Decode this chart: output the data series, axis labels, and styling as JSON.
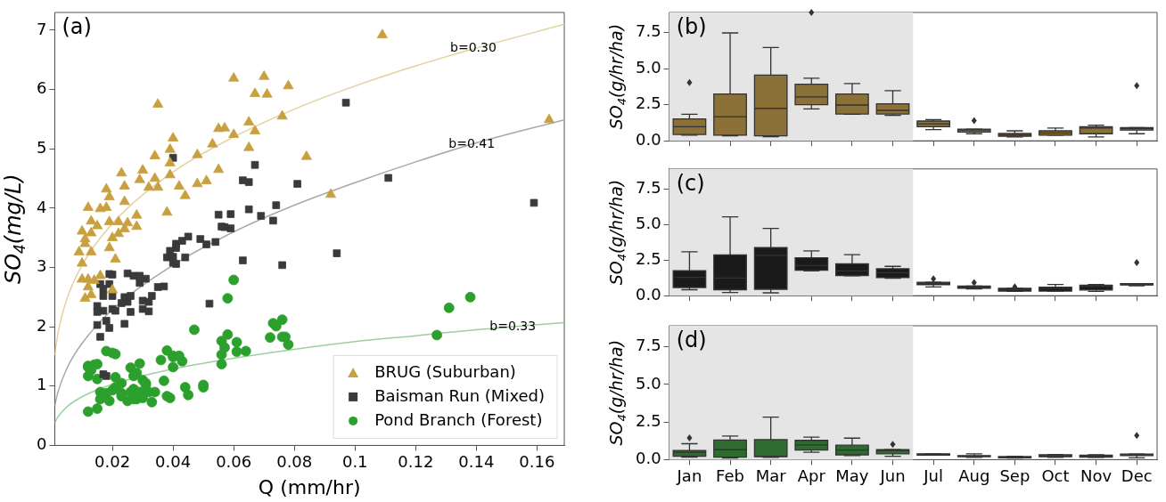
{
  "chart_data": [
    {
      "type": "scatter",
      "xlabel": "Q (mm/hr)",
      "ylabel": "SO$_{4}$(mg/L)",
      "xlim": [
        0.001,
        0.169
      ],
      "ylim": [
        0,
        7.3
      ],
      "xticks": [
        0.02,
        0.04,
        0.06,
        0.08,
        0.1,
        0.12,
        0.14,
        0.16
      ],
      "yticks": [
        0,
        1,
        2,
        3,
        4,
        5,
        6,
        7
      ],
      "legend": "bottom right",
      "annotations": [
        "(a)",
        {
          "text": "b=0.30",
          "x": 0.139,
          "y": 6.69
        },
        {
          "text": "b=0.41",
          "x": 0.1385,
          "y": 5.08
        },
        {
          "text": "b=0.33",
          "x": 0.152,
          "y": 2.0
        }
      ],
      "series": [
        {
          "name": "BRUG (Suburban)",
          "color": "#c9a040",
          "marker": "triangle",
          "x": [
            0.06,
            0.07,
            0.078,
            0.067,
            0.071,
            0.035,
            0.076,
            0.065,
            0.055,
            0.057,
            0.06,
            0.067,
            0.04,
            0.053,
            0.065,
            0.039,
            0.034,
            0.048,
            0.039,
            0.055,
            0.023,
            0.03,
            0.039,
            0.029,
            0.034,
            0.024,
            0.032,
            0.035,
            0.042,
            0.048,
            0.051,
            0.044,
            0.018,
            0.019,
            0.018,
            0.016,
            0.012,
            0.024,
            0.028,
            0.038,
            0.013,
            0.015,
            0.019,
            0.022,
            0.025,
            0.028,
            0.024,
            0.01,
            0.013,
            0.011,
            0.02,
            0.022,
            0.019,
            0.011,
            0.009,
            0.013,
            0.021,
            0.01,
            0.01,
            0.012,
            0.014,
            0.016,
            0.012,
            0.013,
            0.011,
            0.02,
            0.109,
            0.084,
            0.092,
            0.164
          ],
          "values": [
            6.19,
            6.22,
            6.06,
            5.93,
            5.92,
            5.75,
            5.55,
            5.45,
            5.34,
            5.35,
            5.24,
            5.3,
            5.18,
            5.08,
            5.02,
            4.99,
            4.88,
            4.9,
            4.76,
            4.65,
            4.59,
            4.64,
            4.56,
            4.48,
            4.5,
            4.37,
            4.35,
            4.35,
            4.37,
            4.41,
            4.46,
            4.21,
            4.32,
            4.19,
            4.01,
            3.99,
            4.01,
            4.11,
            3.88,
            3.93,
            3.78,
            3.7,
            3.77,
            3.77,
            3.75,
            3.69,
            3.65,
            3.61,
            3.58,
            3.48,
            3.5,
            3.57,
            3.33,
            3.4,
            3.26,
            3.26,
            3.14,
            3.07,
            2.8,
            2.8,
            2.78,
            2.86,
            2.67,
            2.54,
            2.48,
            2.62,
            6.92,
            4.87,
            4.23,
            5.49
          ]
        },
        {
          "name": "Baisman Run (Mixed)",
          "color": "#3a3a3a",
          "marker": "square",
          "x": [
            0.04,
            0.067,
            0.063,
            0.065,
            0.081,
            0.055,
            0.059,
            0.065,
            0.074,
            0.069,
            0.073,
            0.056,
            0.057,
            0.059,
            0.045,
            0.043,
            0.041,
            0.049,
            0.051,
            0.054,
            0.041,
            0.039,
            0.04,
            0.044,
            0.038,
            0.041,
            0.04,
            0.063,
            0.076,
            0.019,
            0.02,
            0.025,
            0.027,
            0.029,
            0.031,
            0.016,
            0.019,
            0.017,
            0.029,
            0.035,
            0.037,
            0.033,
            0.02,
            0.017,
            0.024,
            0.026,
            0.025,
            0.023,
            0.03,
            0.032,
            0.015,
            0.017,
            0.015,
            0.02,
            0.021,
            0.026,
            0.03,
            0.032,
            0.018,
            0.015,
            0.019,
            0.024,
            0.016,
            0.052,
            0.017,
            0.018,
            0.097,
            0.111,
            0.094,
            0.159
          ],
          "values": [
            4.85,
            4.73,
            4.47,
            4.44,
            4.41,
            3.89,
            3.9,
            3.98,
            4.05,
            3.87,
            3.79,
            3.69,
            3.68,
            3.66,
            3.52,
            3.45,
            3.4,
            3.48,
            3.39,
            3.43,
            3.33,
            3.28,
            3.18,
            3.17,
            3.17,
            3.06,
            3.08,
            3.12,
            3.04,
            2.89,
            2.88,
            2.9,
            2.86,
            2.86,
            2.81,
            2.72,
            2.72,
            2.64,
            2.74,
            2.67,
            2.68,
            2.52,
            2.52,
            2.52,
            2.5,
            2.52,
            2.42,
            2.4,
            2.44,
            2.42,
            2.35,
            2.27,
            2.25,
            2.3,
            2.27,
            2.25,
            2.3,
            2.26,
            2.1,
            2.03,
            1.98,
            2.05,
            1.83,
            2.39,
            1.2,
            1.17,
            5.78,
            4.51,
            3.24,
            4.09
          ]
        },
        {
          "name": "Pond Branch (Forest)",
          "color": "#2ca02c",
          "marker": "circle",
          "x": [
            0.06,
            0.058,
            0.047,
            0.076,
            0.073,
            0.074,
            0.072,
            0.076,
            0.077,
            0.078,
            0.058,
            0.056,
            0.061,
            0.057,
            0.056,
            0.061,
            0.064,
            0.056,
            0.038,
            0.04,
            0.04,
            0.042,
            0.043,
            0.04,
            0.036,
            0.018,
            0.02,
            0.021,
            0.012,
            0.012,
            0.014,
            0.015,
            0.013,
            0.026,
            0.029,
            0.027,
            0.028,
            0.03,
            0.031,
            0.031,
            0.012,
            0.015,
            0.021,
            0.023,
            0.037,
            0.044,
            0.05,
            0.05,
            0.045,
            0.016,
            0.018,
            0.02,
            0.021,
            0.023,
            0.026,
            0.027,
            0.029,
            0.032,
            0.034,
            0.016,
            0.019,
            0.023,
            0.025,
            0.027,
            0.028,
            0.03,
            0.033,
            0.038,
            0.039,
            0.012,
            0.015,
            0.138,
            0.131,
            0.127
          ],
          "values": [
            2.79,
            2.48,
            1.95,
            2.12,
            2.06,
            2.01,
            1.82,
            1.83,
            1.83,
            1.7,
            1.87,
            1.76,
            1.74,
            1.65,
            1.53,
            1.58,
            1.59,
            1.37,
            1.6,
            1.51,
            1.49,
            1.51,
            1.42,
            1.32,
            1.44,
            1.59,
            1.56,
            1.54,
            1.34,
            1.32,
            1.36,
            1.37,
            1.27,
            1.31,
            1.38,
            1.17,
            1.22,
            1.1,
            1.05,
            1.02,
            1.17,
            1.12,
            1.15,
            1.05,
            1.09,
            0.98,
            1.02,
            0.98,
            0.85,
            0.9,
            0.88,
            0.93,
            0.98,
            0.88,
            0.9,
            0.95,
            0.9,
            0.9,
            0.9,
            0.78,
            0.75,
            0.83,
            0.75,
            0.78,
            0.78,
            0.8,
            0.73,
            0.83,
            0.8,
            0.57,
            0.62,
            2.5,
            2.32,
            1.86
          ]
        },
        {
          "type": "line",
          "color": "#e2d2a0",
          "marker": "none",
          "x": [
            0.001,
            0.002,
            0.005,
            0.01,
            0.02,
            0.04,
            0.06,
            0.08,
            0.1,
            0.12,
            0.14,
            0.169
          ],
          "values": [
            1.52,
            1.88,
            2.47,
            3.04,
            3.74,
            4.61,
            5.2,
            5.67,
            6.06,
            6.4,
            6.7,
            7.1
          ]
        },
        {
          "type": "line",
          "color": "#a8a8a8",
          "marker": "none",
          "x": [
            0.001,
            0.002,
            0.005,
            0.01,
            0.02,
            0.04,
            0.06,
            0.08,
            0.1,
            0.12,
            0.14,
            0.169
          ],
          "values": [
            0.67,
            0.89,
            1.3,
            1.72,
            2.29,
            3.04,
            3.6,
            4.05,
            4.43,
            4.78,
            5.1,
            5.49
          ]
        },
        {
          "type": "line",
          "color": "#9fcf9f",
          "marker": "none",
          "x": [
            0.001,
            0.002,
            0.005,
            0.01,
            0.02,
            0.04,
            0.06,
            0.08,
            0.1,
            0.12,
            0.14,
            0.169
          ],
          "values": [
            0.38,
            0.48,
            0.65,
            0.82,
            1.03,
            1.29,
            1.47,
            1.62,
            1.75,
            1.85,
            1.95,
            2.07
          ]
        }
      ]
    },
    {
      "type": "box",
      "ylabel": "SO$_{4}$(g/hr/ha)",
      "categories": [
        "Jan",
        "Feb",
        "Mar",
        "Apr",
        "May",
        "Jun",
        "Jul",
        "Aug",
        "Sep",
        "Oct",
        "Nov",
        "Dec"
      ],
      "ylim": [
        0,
        8.9
      ],
      "yticks": [
        {
          "value": 0,
          "label": "0.0"
        },
        {
          "value": 2.5,
          "label": "2.5"
        },
        {
          "value": 5,
          "label": "5.0"
        },
        {
          "value": 7.5,
          "label": "7.5"
        }
      ],
      "tick_labels": "y",
      "color": "#8b7138",
      "annotations": [
        "(b)"
      ],
      "bands": [
        {
          "axis": "x",
          "from": "Jan",
          "to": "Jun",
          "color": "#e5e5e5"
        }
      ],
      "boxes": [
        {
          "low": 0.39,
          "q1": 0.44,
          "median": 0.98,
          "q3": 1.52,
          "high": 1.84,
          "outliers": [
            4.04
          ]
        },
        {
          "low": 0.34,
          "q1": 0.39,
          "median": 1.67,
          "q3": 3.24,
          "high": 7.48
        },
        {
          "low": 0.29,
          "q1": 0.34,
          "median": 2.25,
          "q3": 4.56,
          "high": 6.47
        },
        {
          "low": 2.21,
          "q1": 2.5,
          "median": 3.04,
          "q3": 3.92,
          "high": 4.34,
          "outliers": [
            8.9
          ]
        },
        {
          "low": 1.84,
          "q1": 1.86,
          "median": 2.48,
          "q3": 3.24,
          "high": 3.97
        },
        {
          "low": 1.76,
          "q1": 1.86,
          "median": 2.11,
          "q3": 2.57,
          "high": 3.48
        },
        {
          "low": 0.78,
          "q1": 0.98,
          "median": 1.18,
          "q3": 1.37,
          "high": 1.47
        },
        {
          "low": 0.49,
          "q1": 0.61,
          "median": 0.74,
          "q3": 0.81,
          "high": 0.81,
          "outliers": [
            1.4
          ]
        },
        {
          "low": 0.27,
          "q1": 0.32,
          "median": 0.42,
          "q3": 0.51,
          "high": 0.69
        },
        {
          "low": 0.39,
          "q1": 0.39,
          "median": 0.54,
          "q3": 0.69,
          "high": 0.88
        },
        {
          "low": 0.27,
          "q1": 0.49,
          "median": 0.88,
          "q3": 0.98,
          "high": 1.08
        },
        {
          "low": 0.49,
          "q1": 0.74,
          "median": 0.86,
          "q3": 0.91,
          "high": 0.91,
          "outliers": [
            3.82
          ]
        }
      ]
    },
    {
      "type": "box",
      "ylabel": "SO$_{4}$(g/hr/ha)",
      "categories": [
        "Jan",
        "Feb",
        "Mar",
        "Apr",
        "May",
        "Jun",
        "Jul",
        "Aug",
        "Sep",
        "Oct",
        "Nov",
        "Dec"
      ],
      "ylim": [
        0,
        8.9
      ],
      "yticks": [
        {
          "value": 0,
          "label": "0.0"
        },
        {
          "value": 2.5,
          "label": "2.5"
        },
        {
          "value": 5,
          "label": "5.0"
        },
        {
          "value": 7.5,
          "label": "7.5"
        }
      ],
      "tick_labels": "y",
      "color": "#1a1a1a",
      "annotations": [
        "(c)"
      ],
      "bands": [
        {
          "axis": "x",
          "from": "Jan",
          "to": "Jun",
          "color": "#e5e5e5"
        }
      ],
      "boxes": [
        {
          "low": 0.42,
          "q1": 0.57,
          "median": 1.29,
          "q3": 1.76,
          "high": 3.08
        },
        {
          "low": 0.22,
          "q1": 0.42,
          "median": 1.24,
          "q3": 2.86,
          "high": 5.54
        },
        {
          "low": 0.2,
          "q1": 0.45,
          "median": 2.83,
          "q3": 3.38,
          "high": 4.72
        },
        {
          "low": 1.74,
          "q1": 1.79,
          "median": 2.11,
          "q3": 2.66,
          "high": 3.15
        },
        {
          "low": 1.39,
          "q1": 1.42,
          "median": 1.74,
          "q3": 2.23,
          "high": 2.88
        },
        {
          "low": 1.22,
          "q1": 1.27,
          "median": 1.61,
          "q3": 1.89,
          "high": 2.06
        },
        {
          "low": 0.62,
          "q1": 0.77,
          "median": 0.87,
          "q3": 0.94,
          "high": 0.94,
          "outliers": [
            1.19
          ]
        },
        {
          "low": 0.47,
          "q1": 0.52,
          "median": 0.62,
          "q3": 0.67,
          "high": 0.67,
          "outliers": [
            0.92
          ]
        },
        {
          "low": 0.3,
          "q1": 0.32,
          "median": 0.42,
          "q3": 0.52,
          "high": 0.52,
          "outliers": [
            0.62
          ]
        },
        {
          "low": 0.32,
          "q1": 0.32,
          "median": 0.5,
          "q3": 0.6,
          "high": 0.79
        },
        {
          "low": 0.3,
          "q1": 0.4,
          "median": 0.65,
          "q3": 0.74,
          "high": 0.79
        },
        {
          "low": 0.7,
          "q1": 0.75,
          "median": 0.79,
          "q3": 0.84,
          "high": 0.84,
          "outliers": [
            2.33
          ]
        }
      ]
    },
    {
      "type": "box",
      "ylabel": "SO$_{4}$(g/hr/ha)",
      "categories": [
        "Jan",
        "Feb",
        "Mar",
        "Apr",
        "May",
        "Jun",
        "Jul",
        "Aug",
        "Sep",
        "Oct",
        "Nov",
        "Dec"
      ],
      "ylim": [
        0,
        8.9
      ],
      "yticks": [
        {
          "value": 0,
          "label": "0.0"
        },
        {
          "value": 2.5,
          "label": "2.5"
        },
        {
          "value": 5,
          "label": "5.0"
        },
        {
          "value": 7.5,
          "label": "7.5"
        }
      ],
      "color": "#2e6b2e",
      "annotations": [
        "(d)"
      ],
      "bands": [
        {
          "axis": "x",
          "from": "Jan",
          "to": "Jun",
          "color": "#e5e5e5"
        }
      ],
      "boxes": [
        {
          "low": 0.17,
          "q1": 0.22,
          "median": 0.49,
          "q3": 0.61,
          "high": 1.06,
          "outliers": [
            1.45
          ]
        },
        {
          "low": 0.1,
          "q1": 0.17,
          "median": 0.66,
          "q3": 1.3,
          "high": 1.57
        },
        {
          "low": 0.15,
          "q1": 0.2,
          "median": 0.22,
          "q3": 1.33,
          "high": 2.83
        },
        {
          "low": 0.49,
          "q1": 0.64,
          "median": 0.98,
          "q3": 1.28,
          "high": 1.5
        },
        {
          "low": 0.27,
          "q1": 0.32,
          "median": 0.64,
          "q3": 0.96,
          "high": 1.43
        },
        {
          "low": 0.22,
          "q1": 0.39,
          "median": 0.61,
          "q3": 0.66,
          "high": 0.66,
          "outliers": [
            1.01
          ]
        },
        {
          "low": 0.3,
          "q1": 0.3,
          "median": 0.34,
          "q3": 0.39,
          "high": 0.39
        },
        {
          "low": 0.15,
          "q1": 0.2,
          "median": 0.22,
          "q3": 0.27,
          "high": 0.39
        },
        {
          "low": 0.1,
          "q1": 0.12,
          "median": 0.15,
          "q3": 0.2,
          "high": 0.22
        },
        {
          "low": 0.15,
          "q1": 0.2,
          "median": 0.22,
          "q3": 0.32,
          "high": 0.34
        },
        {
          "low": 0.15,
          "q1": 0.17,
          "median": 0.22,
          "q3": 0.3,
          "high": 0.32
        },
        {
          "low": 0.12,
          "q1": 0.27,
          "median": 0.32,
          "q3": 0.37,
          "high": 0.37,
          "outliers": [
            1.6
          ]
        }
      ]
    }
  ]
}
